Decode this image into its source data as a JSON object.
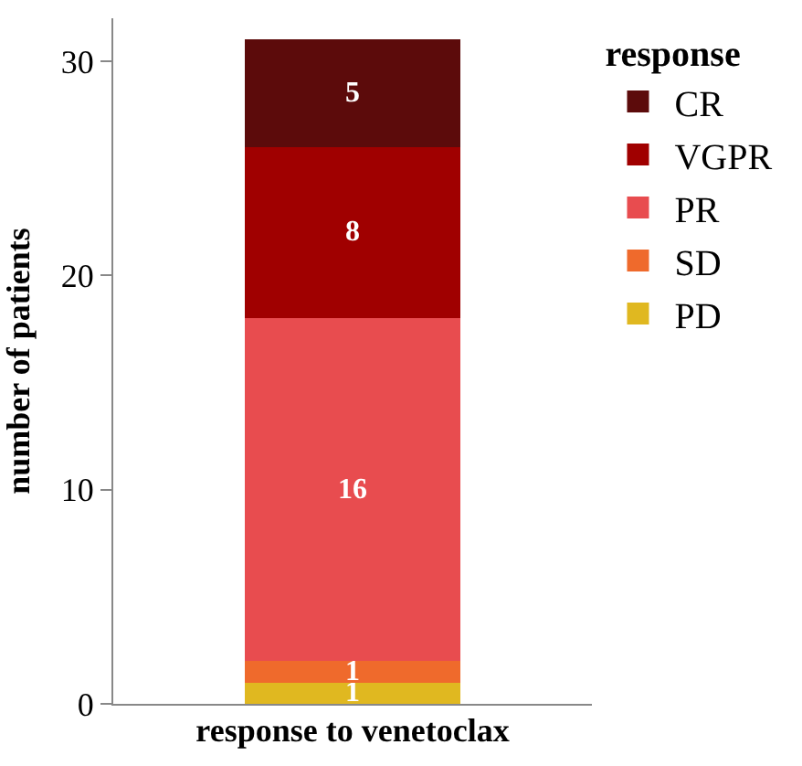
{
  "chart_data": {
    "type": "bar",
    "stacked": true,
    "xlabel": "response to venetoclax",
    "ylabel": "number of patients",
    "legend_title": "response",
    "categories": [
      null
    ],
    "series": [
      {
        "name": "PD",
        "color": "#e0b820",
        "values": [
          1
        ]
      },
      {
        "name": "SD",
        "color": "#ef6a2c",
        "values": [
          1
        ]
      },
      {
        "name": "PR",
        "color": "#e84c4f",
        "values": [
          16
        ]
      },
      {
        "name": "VGPR",
        "color": "#a00000",
        "values": [
          8
        ]
      },
      {
        "name": "CR",
        "color": "#5c0b0b",
        "values": [
          5
        ]
      }
    ],
    "ylim": [
      0,
      32
    ],
    "yticks": [
      0,
      10,
      20,
      30
    ],
    "grid": false,
    "legend": "right",
    "data_labels": true
  }
}
